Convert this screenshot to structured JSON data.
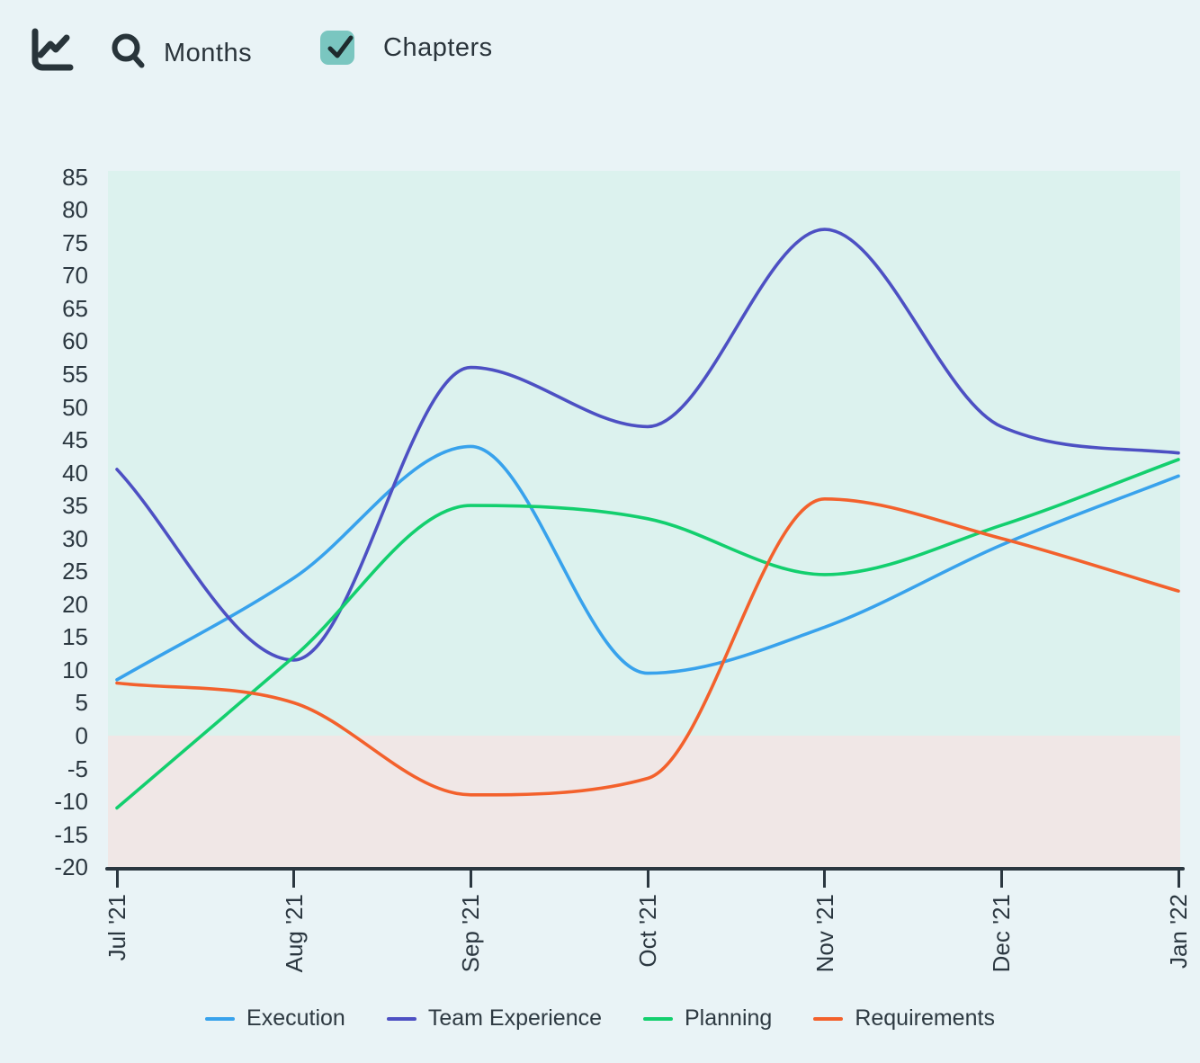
{
  "toolbar": {
    "months_label": "Months",
    "chapters_label": "Chapters",
    "chapters_checked": true
  },
  "colors": {
    "page_background": "#e9f3f6",
    "icon_dark": "#28343a",
    "checkbox_teal": "#7ac6c0",
    "axis_text": "#2b3740"
  },
  "chart_data": {
    "type": "line",
    "title": "",
    "xlabel": "",
    "ylabel": "",
    "categories": [
      "Jul '21",
      "Aug '21",
      "Sep '21",
      "Oct '21",
      "Nov '21",
      "Dec '21",
      "Jan '22"
    ],
    "series": [
      {
        "name": "Execution",
        "color": "#38a2ec",
        "values": [
          8.5,
          24,
          44,
          9.5,
          16.5,
          29,
          39.5
        ]
      },
      {
        "name": "Team Experience",
        "color": "#4d50c3",
        "values": [
          40.5,
          11.5,
          56,
          47,
          77,
          47,
          43
        ]
      },
      {
        "name": "Planning",
        "color": "#13cf6e",
        "values": [
          -11,
          12,
          35,
          33,
          24.5,
          32,
          42
        ]
      },
      {
        "name": "Requirements",
        "color": "#f3612c",
        "values": [
          8,
          5,
          -9,
          -6.5,
          36,
          30,
          22
        ]
      }
    ],
    "ylim": [
      -20,
      85
    ],
    "ytick_step": 5,
    "grid": false,
    "legend_position": "bottom",
    "positive_region_color": "#dcf2ee",
    "negative_region_color": "#f0e7e6",
    "smooth": true
  }
}
